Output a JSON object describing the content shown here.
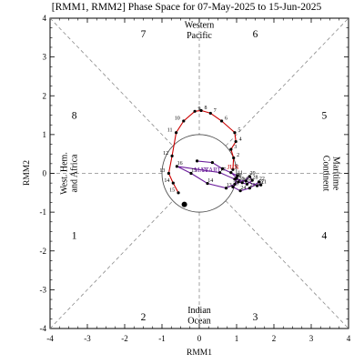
{
  "chart_data": {
    "type": "scatter",
    "title": "[RMM1, RMM2] Phase Space for 07-May-2025 to 15-Jun-2025",
    "xlabel": "RMM1",
    "ylabel": "RMM2",
    "xlim": [
      -4,
      4
    ],
    "ylim": [
      -4,
      4
    ],
    "xticks": [
      "-4",
      "-3",
      "-2",
      "-1",
      "0",
      "1",
      "2",
      "3",
      "4"
    ],
    "yticks": [
      "-4",
      "-3",
      "-2",
      "-1",
      "0",
      "1",
      "2",
      "3",
      "4"
    ],
    "grid": false,
    "unit_circle_radius": 1,
    "phase_numbers": [
      "1",
      "2",
      "3",
      "4",
      "5",
      "6",
      "7",
      "8"
    ],
    "regions": {
      "top": [
        "Western",
        "Pacific"
      ],
      "bottom": [
        "Indian",
        "Ocean"
      ],
      "left": [
        "West. Hem.",
        "and Africa"
      ],
      "right": [
        "Maritime",
        "Continent"
      ]
    },
    "series": [
      {
        "name": "MAY",
        "color": "#6a1b9a",
        "x": [
          -0.06,
          0.35,
          0.62,
          1.02,
          0.95,
          0.72,
          0.22,
          -0.22,
          -0.6,
          0.55,
          0.95,
          1.25,
          1.55,
          1.65,
          1.6,
          1.35,
          1.1,
          0.9,
          1.05,
          1.28,
          1.42,
          1.35,
          1.15,
          1.0,
          0.85
        ],
        "y": [
          0.32,
          0.28,
          0.12,
          -0.06,
          -0.28,
          -0.38,
          -0.26,
          0.0,
          0.18,
          0.02,
          -0.15,
          -0.2,
          -0.32,
          -0.3,
          -0.22,
          -0.38,
          -0.45,
          -0.35,
          -0.22,
          -0.28,
          -0.18,
          -0.08,
          -0.24,
          -0.12,
          0.02
        ]
      },
      {
        "name": "JUN",
        "color": "#cc0000",
        "x": [
          0.9,
          0.92,
          0.85,
          0.98,
          0.95,
          0.6,
          0.3,
          0.05,
          -0.12,
          -0.42,
          -0.62,
          -0.73,
          -0.82,
          -0.7,
          -0.56
        ],
        "y": [
          0.1,
          0.4,
          0.62,
          0.82,
          1.05,
          1.35,
          1.55,
          1.62,
          1.6,
          1.35,
          1.05,
          0.45,
          0.0,
          -0.25,
          -0.5
        ]
      }
    ],
    "day_labels_jun": [
      "1",
      "2",
      "3",
      "4",
      "5",
      "6",
      "7",
      "8",
      "9",
      "10",
      "11",
      "12",
      "13",
      "14",
      "15"
    ],
    "day_labels_may": [
      "11",
      "12",
      "13",
      "14",
      "15",
      "16",
      "17",
      "18",
      "19",
      "20",
      "21",
      "22",
      "23",
      "24",
      "25",
      "26",
      "27",
      "28",
      "29",
      "30",
      "31"
    ],
    "end_marker": {
      "x": -0.4,
      "y": -0.8
    },
    "month_labels": [
      {
        "text": "MAY",
        "x": 0.05,
        "y": 0.03,
        "color": "#6a1b9a"
      },
      {
        "text": "START",
        "x": 0.32,
        "y": 0.03,
        "color": "#6a1b9a"
      },
      {
        "text": "JUN",
        "x": 0.9,
        "y": 0.1,
        "color": "#cc0000"
      }
    ]
  }
}
